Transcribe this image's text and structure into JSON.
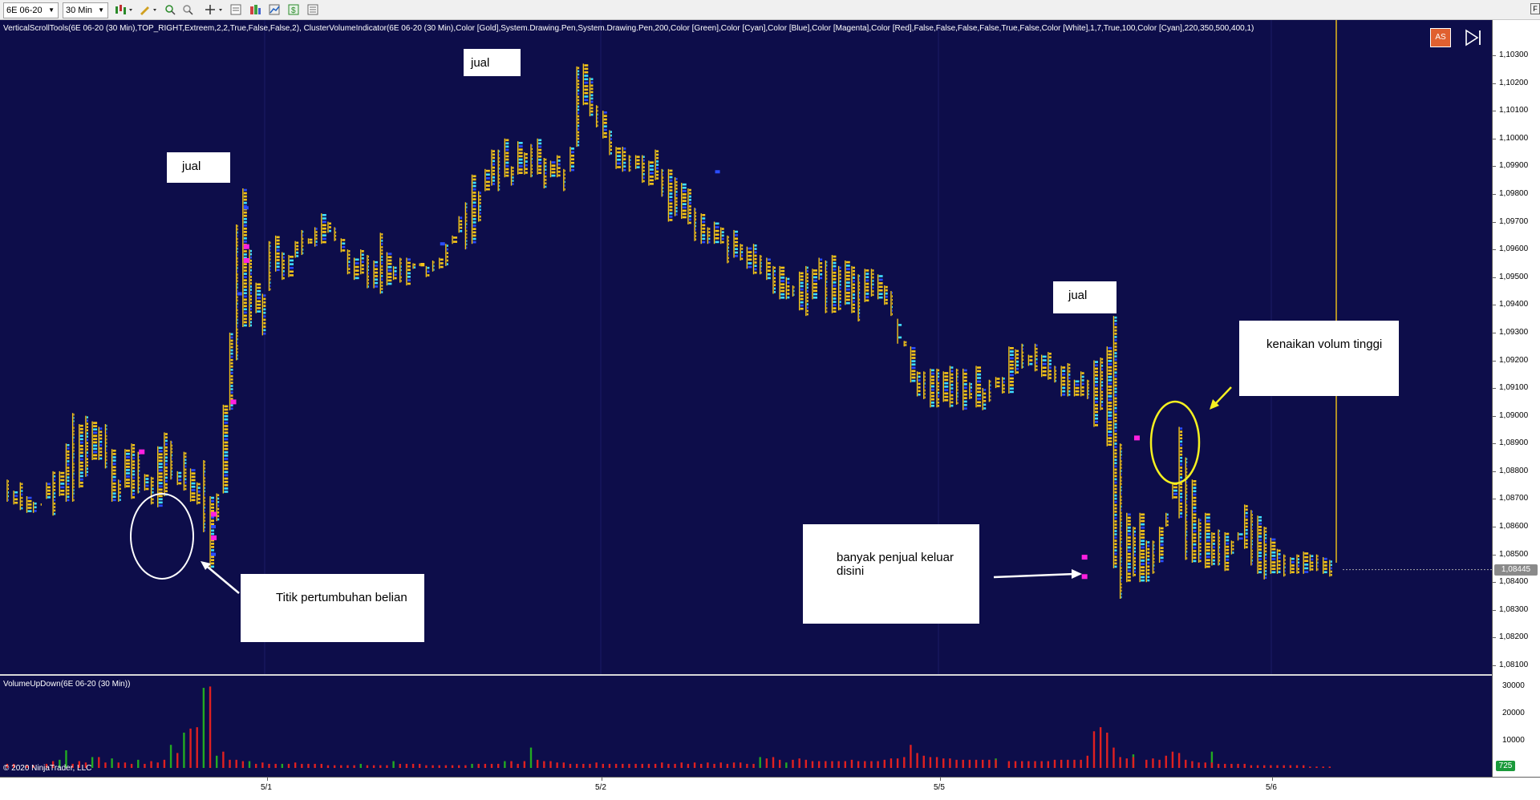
{
  "toolbar": {
    "instrument": "6E 06-20",
    "timeframe": "30 Min"
  },
  "main": {
    "indicator_string": "VerticalScrollTools(6E 06-20 (30 Min),TOP_RIGHT,Extreem,2,2,True,False,False,2), ClusterVolumeIndicator(6E 06-20 (30 Min),Color [Gold],System.Drawing.Pen,System.Drawing.Pen,200,Color [Green],Color [Cyan],Color [Blue],Color [Magenta],Color [Red],False,False,False,False,True,False,Color [White],1,7,True,100,Color [Cyan],220,350,500,400,1)",
    "as_button": "AS",
    "last_price": "1,08445",
    "price_ticks": [
      "1,10300",
      "1,10200",
      "1,10100",
      "1,10000",
      "1,09900",
      "1,09800",
      "1,09700",
      "1,09600",
      "1,09500",
      "1,09400",
      "1,09300",
      "1,09200",
      "1,09100",
      "1,09000",
      "1,08900",
      "1,08800",
      "1,08700",
      "1,08600",
      "1,08500",
      "1,08400",
      "1,08300",
      "1,08200",
      "1,08100"
    ]
  },
  "annotations": {
    "jual_1": "jual",
    "jual_2": "jual",
    "jual_3": "jual",
    "titik": "Titik pertumbuhan belian",
    "banyak": "banyak penjual keluar disini",
    "kenaikan": "kenaikan volum tinggi"
  },
  "indicator_panel": {
    "label": "VolumeUpDown(6E 06-20 (30 Min))",
    "ticks": [
      "30000",
      "20000",
      "10000"
    ],
    "last_value": "725",
    "copyright": "© 2020 NinjaTrader, LLC"
  },
  "time_axis": {
    "labels": [
      "5/1",
      "5/2",
      "5/5",
      "5/6"
    ]
  },
  "chart_data": {
    "type": "bar",
    "title": "",
    "xlabel": "",
    "ylabel": "",
    "price_range": [
      1.0805,
      1.1035
    ],
    "volume_range": [
      0,
      31000
    ],
    "x_labels": [
      "5/1",
      "5/2",
      "5/5",
      "5/6"
    ],
    "colors": {
      "up": "#22aa22",
      "down": "#e02020",
      "price_bar": "#f5c518",
      "cyan": "#40e0ff",
      "blue": "#2a4dff",
      "magenta": "#ff20e0"
    },
    "price_highs": [
      1.0877,
      1.0873,
      1.0876,
      1.0871,
      1.0869,
      1.0868,
      1.0876,
      1.088,
      1.088,
      1.089,
      1.0901,
      1.0897,
      1.09,
      1.0898,
      1.0896,
      1.0897,
      1.0888,
      1.0877,
      1.0888,
      1.089,
      1.0887,
      1.0879,
      1.0878,
      1.0889,
      1.0894,
      1.0891,
      1.088,
      1.0887,
      1.0881,
      1.0876,
      1.0884,
      1.0871,
      1.0872,
      1.0904,
      1.093,
      1.0969,
      1.0982,
      1.096,
      1.0948,
      1.0944,
      1.0963,
      1.0965,
      1.0959,
      1.0958,
      1.0963,
      1.0967,
      1.0964,
      1.0968,
      1.0973,
      1.097,
      1.0968,
      1.0964,
      1.096,
      1.0957,
      1.096,
      1.0958,
      1.0956,
      1.0966,
      1.0959,
      1.0954,
      1.0957,
      1.0957,
      1.0955,
      1.0955,
      1.0954,
      1.0956,
      1.0957,
      1.0962,
      1.0965,
      1.0972,
      1.0977,
      1.0987,
      1.0981,
      1.0989,
      1.0996,
      1.0996,
      1.1,
      1.099,
      1.0999,
      1.0995,
      1.0998,
      1.1,
      1.0993,
      1.0992,
      1.0994,
      1.0989,
      1.0997,
      1.1026,
      1.1027,
      1.1022,
      1.1012,
      1.101,
      1.1003,
      1.0997,
      1.0997,
      1.0994,
      1.0994,
      1.0994,
      1.0992,
      1.0996,
      1.0989,
      1.0989,
      1.0986,
      1.0984,
      1.0982,
      1.0975,
      1.0973,
      1.0968,
      1.097,
      1.0968,
      1.0965,
      1.0967,
      1.0962,
      1.0961,
      1.0962,
      1.0958,
      1.0957,
      1.0954,
      1.0954,
      1.095,
      1.0947,
      1.0952,
      1.0954,
      1.0953,
      1.0957,
      1.0956,
      1.0958,
      1.0954,
      1.0956,
      1.0954,
      1.0951,
      1.0953,
      1.0953,
      1.0951,
      1.0947,
      1.0945,
      1.0926,
      1.0925,
      1.0925,
      1.0916,
      1.0916,
      1.0917,
      1.0917,
      1.0916,
      1.0918,
      1.0917,
      1.0917,
      1.0912,
      1.0918,
      1.091,
      1.0913,
      1.0914,
      1.0914,
      1.0925,
      1.0924,
      1.0926,
      1.0922,
      1.0926,
      1.0922,
      1.0923,
      1.0918,
      1.0918,
      1.0919,
      1.0913,
      1.0916,
      1.0913,
      1.092,
      1.0921,
      1.0925,
      1.0936,
      1.089,
      1.0865,
      1.086,
      1.0865,
      1.0855,
      1.0855,
      1.086,
      1.0865,
      1.0876,
      1.0896,
      1.0885,
      1.0877,
      1.0863,
      1.0865,
      1.0858,
      1.0859,
      1.0858,
      1.0855,
      1.0858,
      1.0868,
      1.0866,
      1.0864,
      1.086,
      1.0856,
      1.0852,
      1.085,
      1.0849,
      1.085,
      1.0851,
      1.085,
      1.085,
      1.0849,
      1.0848,
      1.0847
    ],
    "price_lows": [
      1.0869,
      1.0868,
      1.0866,
      1.0865,
      1.0865,
      1.0868,
      1.087,
      1.0864,
      1.0871,
      1.0869,
      1.0869,
      1.0874,
      1.0878,
      1.0884,
      1.0884,
      1.0881,
      1.0869,
      1.0869,
      1.0874,
      1.087,
      1.0872,
      1.0873,
      1.0868,
      1.0867,
      1.0871,
      1.0877,
      1.0875,
      1.0873,
      1.0869,
      1.0868,
      1.0858,
      1.0845,
      1.0862,
      1.0872,
      1.0902,
      1.092,
      1.0932,
      1.0932,
      1.0937,
      1.0929,
      1.0945,
      1.0952,
      1.0949,
      1.095,
      1.0957,
      1.0958,
      1.0962,
      1.0961,
      1.0962,
      1.0966,
      1.0963,
      1.0959,
      1.0951,
      1.0949,
      1.0951,
      1.0946,
      1.0946,
      1.0944,
      1.0947,
      1.0949,
      1.0948,
      1.0947,
      1.0953,
      1.0954,
      1.095,
      1.0952,
      1.0953,
      1.0954,
      1.0962,
      1.0966,
      1.096,
      1.0962,
      1.097,
      1.0981,
      1.0983,
      1.0981,
      1.0986,
      1.0983,
      1.0987,
      1.0987,
      1.0986,
      1.0987,
      1.0982,
      1.0986,
      1.0986,
      1.0981,
      1.0988,
      1.0997,
      1.1012,
      1.1008,
      1.1004,
      1.1,
      1.0994,
      1.0989,
      1.0988,
      1.0988,
      1.0989,
      1.0984,
      1.0983,
      1.0985,
      1.0979,
      1.097,
      1.0972,
      1.0971,
      1.0969,
      1.0963,
      1.0962,
      1.0962,
      1.0962,
      1.0962,
      1.0955,
      1.0957,
      1.0956,
      1.0953,
      1.0951,
      1.0951,
      1.0949,
      1.0944,
      1.0942,
      1.0942,
      1.0943,
      1.0938,
      1.0936,
      1.0942,
      1.0949,
      1.0937,
      1.0937,
      1.0938,
      1.094,
      1.0937,
      1.0934,
      1.0941,
      1.0943,
      1.0942,
      1.094,
      1.0936,
      1.0935,
      1.0927,
      1.0912,
      1.0907,
      1.0906,
      1.0903,
      1.0903,
      1.0905,
      1.0903,
      1.0904,
      1.0902,
      1.0906,
      1.0903,
      1.0902,
      1.0905,
      1.091,
      1.0908,
      1.0908,
      1.0915,
      1.0917,
      1.0918,
      1.0916,
      1.0914,
      1.0913,
      1.0912,
      1.0907,
      1.0907,
      1.0907,
      1.0907,
      1.0906,
      1.0896,
      1.0902,
      1.0889,
      1.0845,
      1.0834,
      1.084,
      1.0842,
      1.084,
      1.084,
      1.0843,
      1.0847,
      1.086,
      1.087,
      1.0863,
      1.0848,
      1.0847,
      1.0847,
      1.0845,
      1.0846,
      1.0846,
      1.0844,
      1.085,
      1.0855,
      1.0852,
      1.0846,
      1.0843,
      1.0841,
      1.0843,
      1.0843,
      1.0842,
      1.0843,
      1.0843,
      1.0843,
      1.0844,
      1.0844,
      1.0843,
      1.0842
    ],
    "volume_up": [
      0,
      0,
      0,
      0,
      0,
      0,
      0,
      0,
      3000,
      6500,
      0,
      0,
      0,
      4000,
      0,
      0,
      3500,
      0,
      0,
      0,
      3000,
      0,
      0,
      0,
      0,
      8500,
      0,
      13000,
      0,
      0,
      29500,
      0,
      4500,
      0,
      0,
      0,
      0,
      2500,
      0,
      0,
      0,
      0,
      1500,
      0,
      0,
      0,
      0,
      0,
      0,
      0,
      0,
      0,
      0,
      0,
      1500,
      0,
      0,
      0,
      0,
      2500,
      0,
      0,
      0,
      0,
      0,
      0,
      0,
      0,
      0,
      0,
      0,
      1500,
      0,
      0,
      0,
      0,
      2500,
      0,
      0,
      0,
      7500,
      0,
      0,
      0,
      0,
      0,
      0,
      0,
      0,
      0,
      0,
      0,
      0,
      0,
      0,
      0,
      0,
      0,
      0,
      0,
      0,
      0,
      0,
      0,
      0,
      0,
      0,
      0,
      0,
      0,
      0,
      0,
      0,
      0,
      0,
      4000,
      0,
      0,
      0,
      2000,
      0,
      0,
      0,
      0,
      0,
      0,
      0,
      0,
      0,
      0,
      0,
      0,
      0,
      0,
      0,
      0,
      0,
      0,
      0,
      0,
      0,
      0,
      0,
      0,
      0,
      0,
      0,
      0,
      0,
      0,
      0,
      3500,
      0,
      0,
      0,
      0,
      0,
      0,
      0,
      0,
      0,
      0,
      0,
      0,
      0,
      0,
      0,
      0,
      0,
      0,
      0,
      0,
      5000,
      0,
      0,
      0,
      0,
      0,
      0,
      0,
      0,
      0,
      0,
      0,
      6000,
      0,
      0,
      0,
      0,
      0,
      0,
      0,
      0,
      0,
      0,
      0,
      0,
      0,
      0,
      0,
      0,
      0,
      0,
      0,
      0,
      0,
      0,
      0
    ],
    "volume_down": [
      1500,
      1500,
      0,
      1000,
      1000,
      0,
      1500,
      2500,
      0,
      0,
      1500,
      2500,
      2000,
      0,
      4000,
      2000,
      0,
      2000,
      2000,
      1500,
      0,
      1500,
      2500,
      2000,
      3000,
      0,
      5500,
      0,
      14500,
      15000,
      0,
      30000,
      0,
      6000,
      3000,
      3000,
      2500,
      0,
      1500,
      2000,
      1500,
      1500,
      0,
      1500,
      2000,
      1500,
      1500,
      1500,
      1500,
      1000,
      1000,
      1000,
      1000,
      1000,
      0,
      1000,
      1000,
      1000,
      1000,
      0,
      1500,
      1500,
      1500,
      1500,
      1000,
      1000,
      1000,
      1000,
      1000,
      1000,
      1000,
      0,
      1500,
      1500,
      1500,
      1500,
      0,
      2500,
      1500,
      2500,
      0,
      3000,
      2500,
      2500,
      2000,
      2000,
      1500,
      1500,
      1500,
      1500,
      2000,
      1500,
      1500,
      1500,
      1500,
      1500,
      1500,
      1500,
      1500,
      1500,
      2000,
      1500,
      1500,
      2000,
      1500,
      2000,
      1500,
      2000,
      1500,
      2000,
      1500,
      2000,
      2000,
      1500,
      1500,
      0,
      3500,
      4000,
      3000,
      0,
      3000,
      3500,
      3000,
      2500,
      2500,
      2500,
      2500,
      2500,
      2500,
      3000,
      2500,
      2500,
      2500,
      2500,
      3000,
      3500,
      3500,
      4000,
      8500,
      5500,
      4500,
      4000,
      4000,
      3500,
      3500,
      3000,
      3000,
      3000,
      3000,
      3000,
      3000,
      3000,
      0,
      2500,
      2500,
      2500,
      2500,
      2500,
      2500,
      2500,
      3000,
      3000,
      3000,
      3000,
      3000,
      4500,
      13500,
      15000,
      13000,
      7500,
      4000,
      3500,
      4000,
      0,
      3000,
      3500,
      3000,
      4500,
      6000,
      5500,
      3000,
      2500,
      2000,
      2000,
      2000,
      1500,
      1500,
      1500,
      1500,
      1500,
      1000,
      1000,
      1000,
      1000,
      1000,
      1000,
      1000,
      1000,
      1000,
      500,
      500,
      500,
      500
    ]
  }
}
